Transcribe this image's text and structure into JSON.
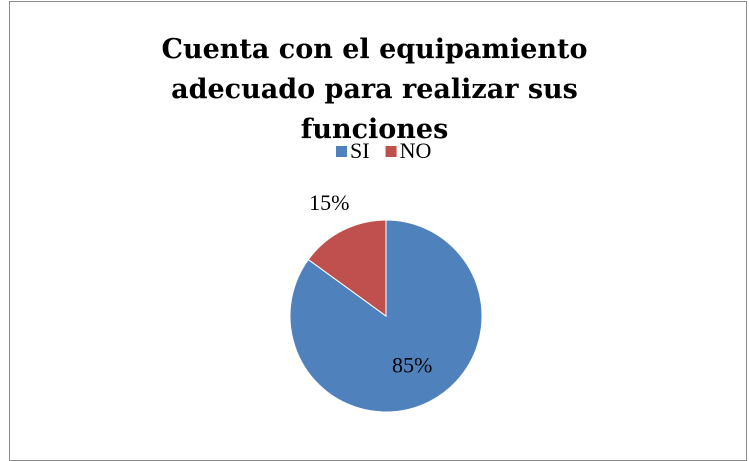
{
  "chart_data": {
    "type": "pie",
    "title": "Cuenta con el equipamiento adecuado para realizar sus funciones",
    "categories": [
      "SI",
      "NO"
    ],
    "values": [
      85,
      15
    ],
    "value_labels": [
      "85%",
      "15%"
    ],
    "colors": [
      "#4f81bd",
      "#c0504d"
    ],
    "legend": "top"
  }
}
